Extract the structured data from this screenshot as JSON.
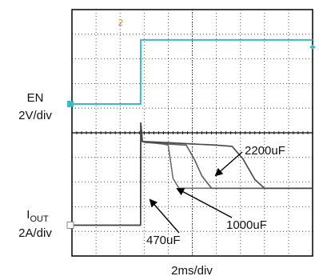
{
  "chart_data": {
    "type": "line",
    "title": "",
    "xlabel": "2ms/div",
    "x_unit": "ms",
    "xlim": [
      0,
      20
    ],
    "grid": true,
    "channels": [
      {
        "name": "EN",
        "scale_label": "2V/div",
        "ylabel_lines": [
          "EN",
          "2V/div"
        ],
        "marker": "2",
        "color": "#3db8c8",
        "x": [
          0,
          5.7,
          5.72,
          20
        ],
        "values": [
          0,
          0,
          5.2,
          5.2
        ],
        "unit": "V"
      },
      {
        "name": "IOUT",
        "scale_label": "2A/div",
        "ylabel_lines": [
          "I",
          "OUT",
          "2A/div"
        ],
        "marker": "⧆",
        "color": "#555555",
        "unit": "A",
        "series": [
          {
            "name": "470uF",
            "x": [
              0,
              5.7,
              5.72,
              5.85,
              6.1,
              6.5,
              7.0,
              7.5,
              8.0,
              8.4,
              8.9,
              20
            ],
            "values": [
              0,
              0,
              8.3,
              6.8,
              6.7,
              6.7,
              6.65,
              6.6,
              6.5,
              3.8,
              3.0,
              3.0
            ]
          },
          {
            "name": "1000uF",
            "x": [
              0,
              5.7,
              5.72,
              5.85,
              6.5,
              8.0,
              9.5,
              10.2,
              10.8,
              11.6,
              20
            ],
            "values": [
              0,
              0,
              8.3,
              6.8,
              6.7,
              6.6,
              6.5,
              5.3,
              4.0,
              3.0,
              3.0
            ]
          },
          {
            "name": "2200uF",
            "x": [
              0,
              5.7,
              5.72,
              5.85,
              8.0,
              10.0,
              12.0,
              13.3,
              14.2,
              15.2,
              16.0,
              20
            ],
            "values": [
              0,
              0,
              8.3,
              6.8,
              6.7,
              6.6,
              6.5,
              6.4,
              5.4,
              3.7,
              3.0,
              3.0
            ]
          }
        ]
      }
    ],
    "annotations": [
      {
        "text": "2200uF",
        "series": "2200uF"
      },
      {
        "text": "1000uF",
        "series": "1000uF"
      },
      {
        "text": "470uF",
        "series": "470uF"
      }
    ]
  }
}
